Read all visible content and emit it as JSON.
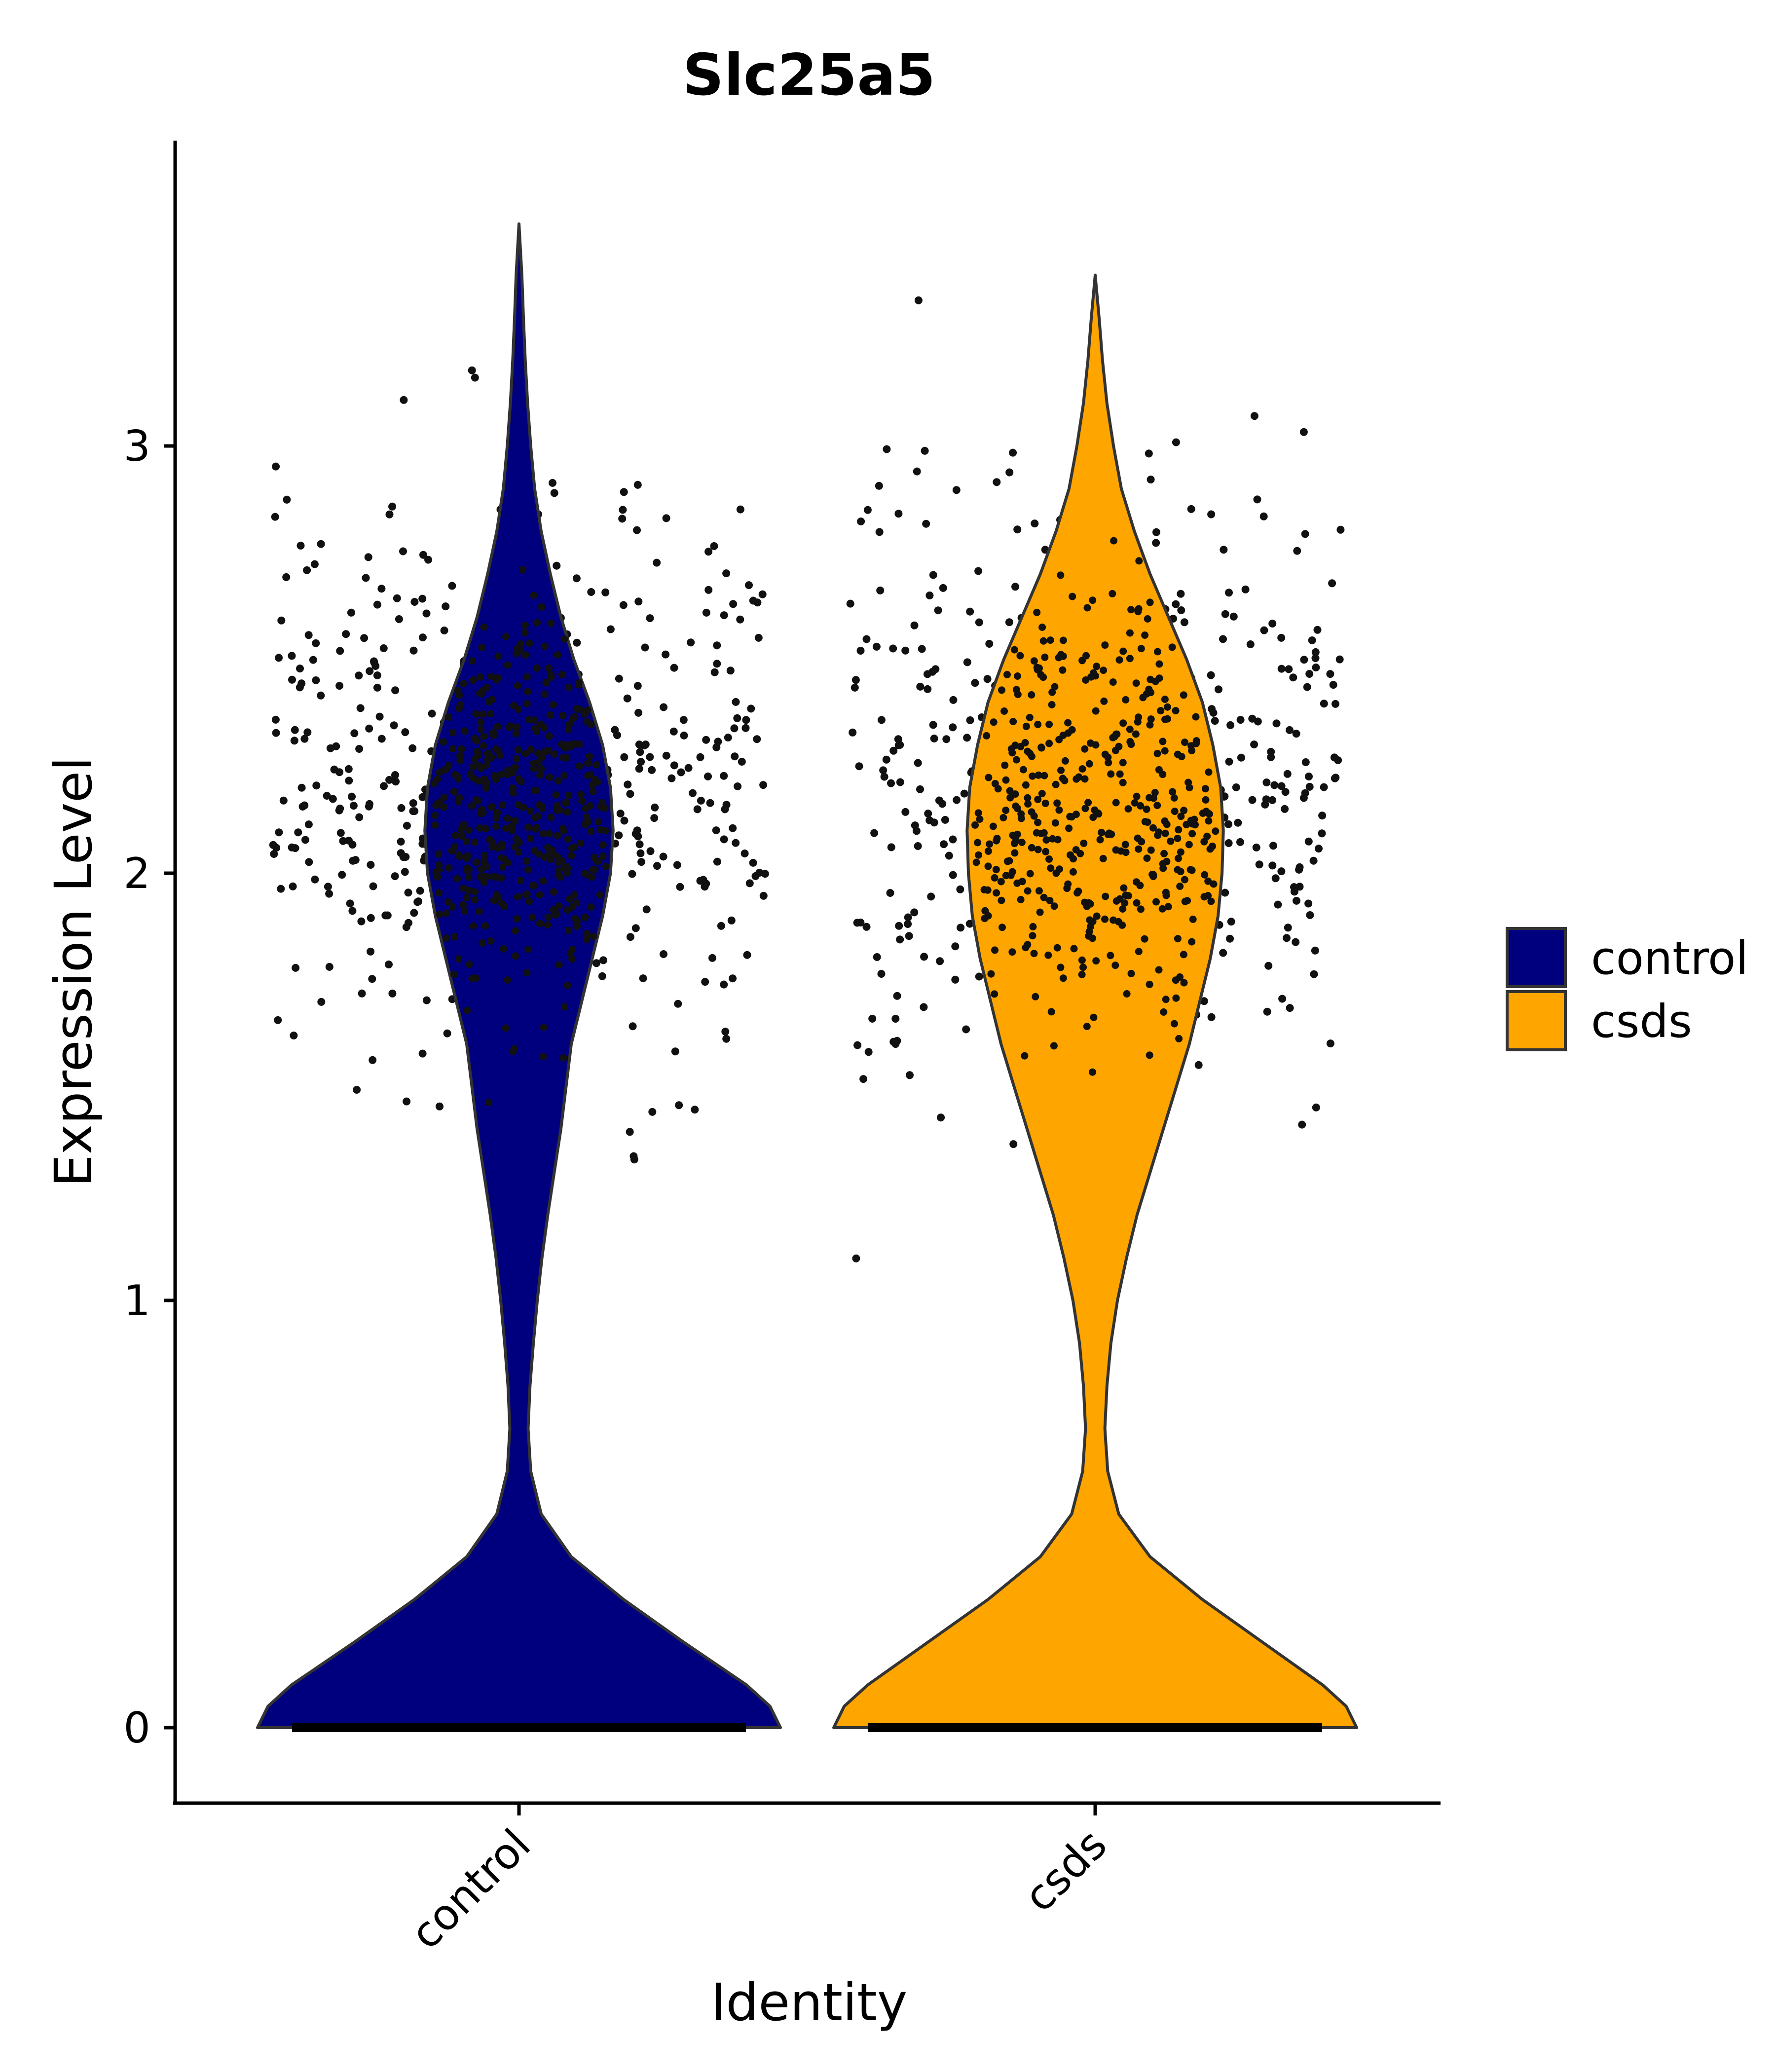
{
  "chart_data": {
    "type": "violin",
    "title": "Slc25a5",
    "xlabel": "Identity",
    "ylabel": "Expression Level",
    "categories": [
      "control",
      "csds"
    ],
    "ylim": [
      -0.17,
      3.6
    ],
    "yticks": [
      0,
      1,
      2,
      3
    ],
    "colors": {
      "control": "#00007F",
      "csds": "#FFA500"
    },
    "violin_outline_color": "#333333",
    "points_shown": true,
    "legend": {
      "placement": "right",
      "entries": [
        {
          "label": "control",
          "color": "#00007F"
        },
        {
          "label": "csds",
          "color": "#FFA500"
        }
      ]
    },
    "series": [
      {
        "name": "control",
        "max": 3.52,
        "density": [
          [
            0.0,
            1.0
          ],
          [
            0.05,
            0.96
          ],
          [
            0.1,
            0.87
          ],
          [
            0.2,
            0.63
          ],
          [
            0.3,
            0.4
          ],
          [
            0.4,
            0.2
          ],
          [
            0.5,
            0.085
          ],
          [
            0.6,
            0.045
          ],
          [
            0.7,
            0.035
          ],
          [
            0.8,
            0.042
          ],
          [
            0.9,
            0.055
          ],
          [
            1.0,
            0.07
          ],
          [
            1.1,
            0.088
          ],
          [
            1.2,
            0.11
          ],
          [
            1.3,
            0.135
          ],
          [
            1.4,
            0.16
          ],
          [
            1.5,
            0.18
          ],
          [
            1.6,
            0.2
          ],
          [
            1.7,
            0.24
          ],
          [
            1.8,
            0.28
          ],
          [
            1.9,
            0.32
          ],
          [
            2.0,
            0.35
          ],
          [
            2.1,
            0.36
          ],
          [
            2.2,
            0.35
          ],
          [
            2.3,
            0.32
          ],
          [
            2.4,
            0.27
          ],
          [
            2.5,
            0.21
          ],
          [
            2.6,
            0.16
          ],
          [
            2.7,
            0.12
          ],
          [
            2.8,
            0.085
          ],
          [
            2.9,
            0.06
          ],
          [
            3.0,
            0.045
          ],
          [
            3.1,
            0.033
          ],
          [
            3.2,
            0.024
          ],
          [
            3.3,
            0.017
          ],
          [
            3.4,
            0.011
          ],
          [
            3.52,
            0.0
          ]
        ]
      },
      {
        "name": "csds",
        "max": 3.4,
        "density": [
          [
            0.0,
            1.0
          ],
          [
            0.05,
            0.96
          ],
          [
            0.1,
            0.87
          ],
          [
            0.2,
            0.64
          ],
          [
            0.3,
            0.41
          ],
          [
            0.4,
            0.21
          ],
          [
            0.5,
            0.09
          ],
          [
            0.6,
            0.048
          ],
          [
            0.7,
            0.037
          ],
          [
            0.8,
            0.045
          ],
          [
            0.9,
            0.06
          ],
          [
            1.0,
            0.085
          ],
          [
            1.1,
            0.12
          ],
          [
            1.2,
            0.16
          ],
          [
            1.3,
            0.21
          ],
          [
            1.4,
            0.26
          ],
          [
            1.5,
            0.31
          ],
          [
            1.6,
            0.36
          ],
          [
            1.7,
            0.4
          ],
          [
            1.8,
            0.44
          ],
          [
            1.9,
            0.47
          ],
          [
            2.0,
            0.485
          ],
          [
            2.1,
            0.49
          ],
          [
            2.2,
            0.48
          ],
          [
            2.3,
            0.45
          ],
          [
            2.4,
            0.41
          ],
          [
            2.5,
            0.35
          ],
          [
            2.6,
            0.28
          ],
          [
            2.7,
            0.21
          ],
          [
            2.8,
            0.15
          ],
          [
            2.9,
            0.1
          ],
          [
            3.0,
            0.07
          ],
          [
            3.1,
            0.045
          ],
          [
            3.2,
            0.028
          ],
          [
            3.3,
            0.015
          ],
          [
            3.4,
            0.0
          ]
        ]
      }
    ]
  }
}
